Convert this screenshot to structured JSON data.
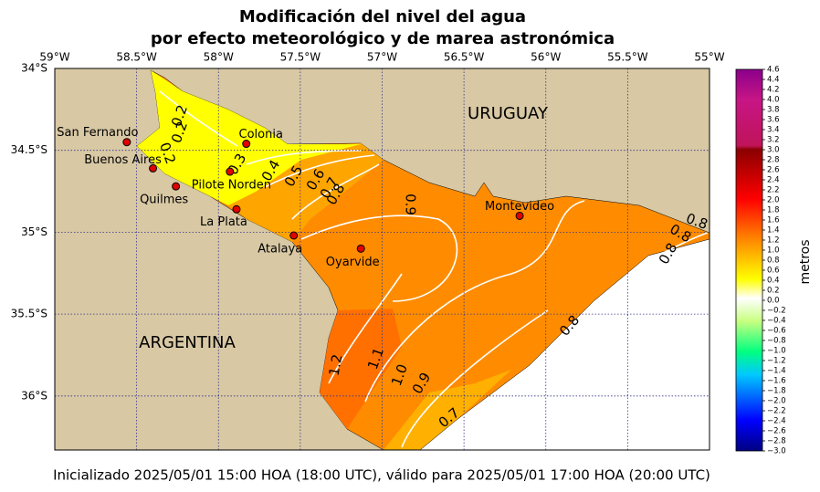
{
  "title": [
    "Modificación del nivel del agua",
    "por efecto meteorológico y de marea astronómica"
  ],
  "map": {
    "xlim": [
      -59,
      -55
    ],
    "ylim": [
      -34,
      -36.33
    ],
    "xticks": [
      {
        "value": -59,
        "label": "59°W"
      },
      {
        "value": -58.5,
        "label": "58.5°W"
      },
      {
        "value": -58,
        "label": "58°W"
      },
      {
        "value": -57.5,
        "label": "57.5°W"
      },
      {
        "value": -57,
        "label": "57°W"
      },
      {
        "value": -56.5,
        "label": "56.5°W"
      },
      {
        "value": -56,
        "label": "56°W"
      },
      {
        "value": -55.5,
        "label": "55.5°W"
      },
      {
        "value": -55,
        "label": "55°W"
      }
    ],
    "yticks": [
      {
        "value": -34,
        "label": "34°S"
      },
      {
        "value": -34.5,
        "label": "34.5°S"
      },
      {
        "value": -35,
        "label": "35°S"
      },
      {
        "value": -35.5,
        "label": "35.5°S"
      },
      {
        "value": -36,
        "label": "36°S"
      }
    ],
    "grid": true,
    "regions": [
      "URUGUAY",
      "ARGENTINA"
    ],
    "places": [
      {
        "name": "San Fernando",
        "lon": -58.56,
        "lat": -34.45
      },
      {
        "name": "Buenos Aires",
        "lon": -58.4,
        "lat": -34.61
      },
      {
        "name": "Quilmes",
        "lon": -58.26,
        "lat": -34.72
      },
      {
        "name": "Pilote Norden",
        "lon": -57.93,
        "lat": -34.63
      },
      {
        "name": "Colonia",
        "lon": -57.83,
        "lat": -34.46
      },
      {
        "name": "La Plata",
        "lon": -57.89,
        "lat": -34.86
      },
      {
        "name": "Atalaya",
        "lon": -57.54,
        "lat": -35.02
      },
      {
        "name": "Oyarvide",
        "lon": -57.13,
        "lat": -35.1
      },
      {
        "name": "Montevideo",
        "lon": -56.16,
        "lat": -34.9
      }
    ],
    "contour_labels": [
      "0.2",
      "0.2",
      "0.2",
      "0.3",
      "0.4",
      "0.5",
      "0.6",
      "0.7",
      "0.8",
      "0.9",
      "0.8",
      "0.8",
      "0.8",
      "0.8",
      "1.2",
      "1.1",
      "1.0",
      "0.9",
      "0.7"
    ]
  },
  "colorbar": {
    "label": "metros",
    "lim": [
      -3.0,
      4.6
    ],
    "ticks": [
      4.6,
      4.4,
      4.2,
      {
        "value": 4.0,
        "label": "4.0"
      },
      3.8,
      3.6,
      3.4,
      3.2,
      {
        "value": 3.0,
        "label": "3.0"
      },
      2.8,
      2.6,
      2.4,
      2.2,
      {
        "value": 2.0,
        "label": "2.0"
      },
      1.8,
      1.6,
      1.4,
      1.2,
      {
        "value": 1.0,
        "label": "1.0"
      },
      0.8,
      0.6,
      0.4,
      0.2,
      {
        "value": 0.0,
        "label": "0.0"
      },
      {
        "value": -0.2,
        "label": "−0.2"
      },
      {
        "value": -0.4,
        "label": "−0.4"
      },
      {
        "value": -0.6,
        "label": "−0.6"
      },
      {
        "value": -0.8,
        "label": "−0.8"
      },
      {
        "value": -1.0,
        "label": "−1.0"
      },
      {
        "value": -1.2,
        "label": "−1.2"
      },
      {
        "value": -1.4,
        "label": "−1.4"
      },
      {
        "value": -1.6,
        "label": "−1.6"
      },
      {
        "value": -1.8,
        "label": "−1.8"
      },
      {
        "value": -2.0,
        "label": "−2.0"
      },
      {
        "value": -2.2,
        "label": "−2.2"
      },
      {
        "value": -2.4,
        "label": "−2.4"
      },
      {
        "value": -2.6,
        "label": "−2.6"
      },
      {
        "value": -2.8,
        "label": "−2.8"
      },
      {
        "value": -3.0,
        "label": "−3.0"
      }
    ]
  },
  "footer": "Inicializado 2025/05/01 15:00 HOA (18:00 UTC), válido para 2025/05/01 17:00 HOA (20:00 UTC)"
}
